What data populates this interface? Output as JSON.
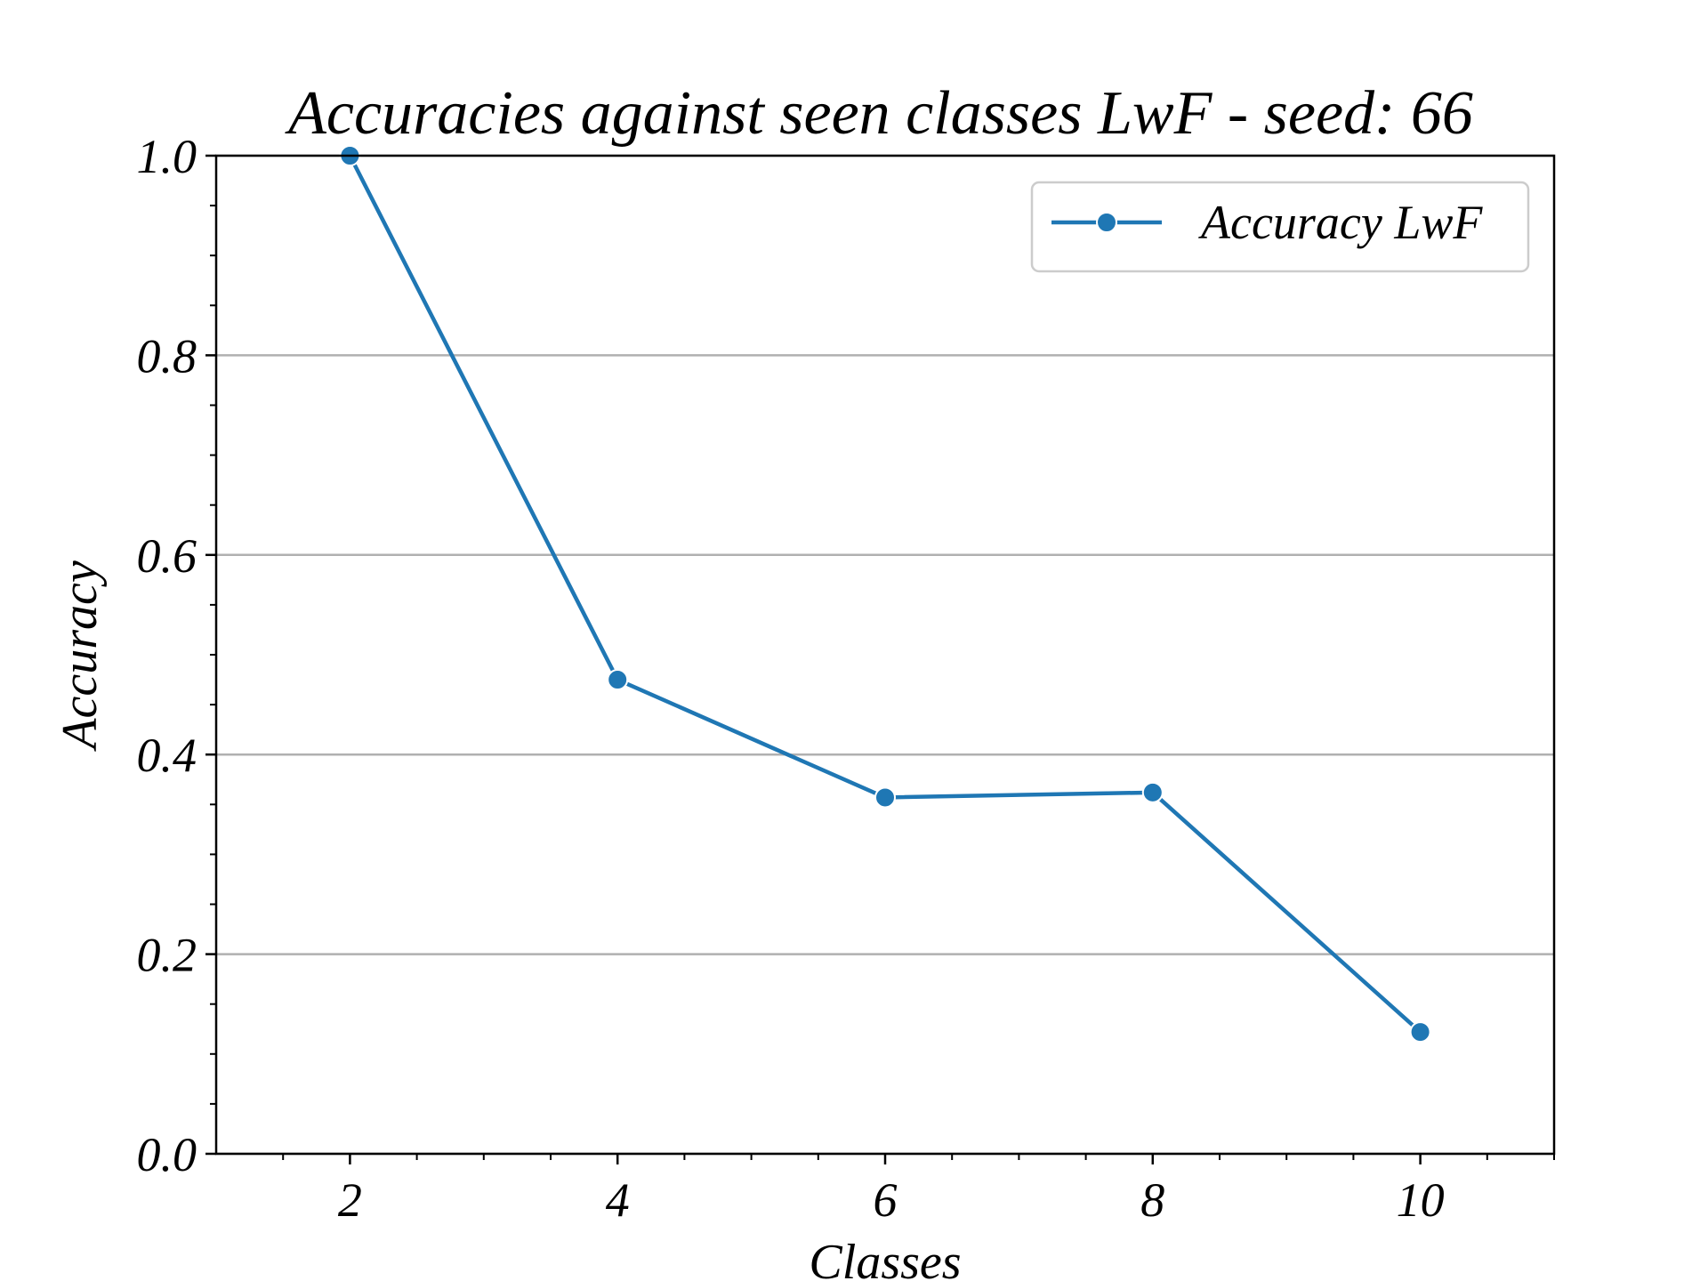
{
  "chart_data": {
    "type": "line",
    "title": "Accuracies against seen classes LwF - seed: 66",
    "xlabel": "Classes",
    "ylabel": "Accuracy",
    "xlim": [
      1,
      11
    ],
    "ylim": [
      0.0,
      1.0
    ],
    "x_ticks": [
      2,
      4,
      6,
      8,
      10
    ],
    "x_tick_labels": [
      "2",
      "4",
      "6",
      "8",
      "10"
    ],
    "x_minor_ticks": [
      1.5,
      2.5,
      3,
      3.5,
      4.5,
      5,
      5.5,
      6.5,
      7,
      7.5,
      8.5,
      9,
      9.5,
      10.5,
      11
    ],
    "y_ticks": [
      0.0,
      0.2,
      0.4,
      0.6,
      0.8,
      1.0
    ],
    "y_tick_labels": [
      "0.0",
      "0.2",
      "0.4",
      "0.6",
      "0.8",
      "1.0"
    ],
    "y_minor_ticks": [
      0.05,
      0.1,
      0.15,
      0.25,
      0.3,
      0.35,
      0.45,
      0.5,
      0.55,
      0.65,
      0.7,
      0.75,
      0.85,
      0.9,
      0.95
    ],
    "grid": "horizontal",
    "legend_position": "top-right",
    "series": [
      {
        "name": "Accuracy LwF",
        "color": "#1f77b4",
        "marker": "circle",
        "x": [
          2,
          4,
          6,
          8,
          10
        ],
        "y": [
          1.0,
          0.475,
          0.357,
          0.362,
          0.122
        ]
      }
    ]
  }
}
